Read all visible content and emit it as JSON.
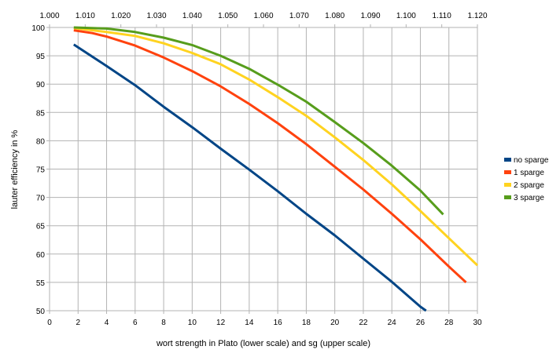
{
  "chart_data": {
    "type": "line",
    "xlabel": "wort strength in Plato (lower scale) and sg (upper scale)",
    "ylabel": "lauter efficiency in %",
    "xlim": [
      0,
      30
    ],
    "ylim": [
      50,
      100
    ],
    "x_ticks": [
      "0",
      "2",
      "4",
      "6",
      "8",
      "10",
      "12",
      "14",
      "16",
      "18",
      "20",
      "22",
      "24",
      "26",
      "28",
      "30"
    ],
    "y_ticks": [
      "50",
      "55",
      "60",
      "65",
      "70",
      "75",
      "80",
      "85",
      "90",
      "95",
      "100"
    ],
    "top_axis": {
      "label_range": [
        1.0,
        1.12
      ],
      "ticks": [
        "1.000",
        "1.010",
        "1.020",
        "1.030",
        "1.040",
        "1.050",
        "1.060",
        "1.070",
        "1.080",
        "1.090",
        "1.100",
        "1.110",
        "1.120"
      ]
    },
    "grid": true,
    "legend_position": "right",
    "series": [
      {
        "name": "no sparge",
        "color": "#004586",
        "points": [
          [
            1.7,
            97.0
          ],
          [
            4,
            93.2
          ],
          [
            6,
            89.8
          ],
          [
            8,
            86.0
          ],
          [
            10,
            82.4
          ],
          [
            12,
            78.6
          ],
          [
            14,
            74.9
          ],
          [
            16,
            71.1
          ],
          [
            18,
            67.1
          ],
          [
            20,
            63.3
          ],
          [
            22,
            59.2
          ],
          [
            24,
            55.1
          ],
          [
            26,
            50.7
          ],
          [
            26.4,
            50.0
          ]
        ]
      },
      {
        "name": "1 sparge",
        "color": "#ff420e",
        "points": [
          [
            1.7,
            99.5
          ],
          [
            3,
            99.0
          ],
          [
            4,
            98.4
          ],
          [
            6,
            96.8
          ],
          [
            8,
            94.7
          ],
          [
            10,
            92.3
          ],
          [
            12,
            89.6
          ],
          [
            14,
            86.5
          ],
          [
            16,
            83.1
          ],
          [
            18,
            79.4
          ],
          [
            20,
            75.4
          ],
          [
            22,
            71.4
          ],
          [
            24,
            67.1
          ],
          [
            26,
            62.6
          ],
          [
            28,
            57.8
          ],
          [
            29.2,
            55.0
          ]
        ]
      },
      {
        "name": "2 sparge",
        "color": "#ffd320",
        "points": [
          [
            1.7,
            99.9
          ],
          [
            4,
            99.2
          ],
          [
            6,
            98.5
          ],
          [
            8,
            97.2
          ],
          [
            10,
            95.5
          ],
          [
            12,
            93.5
          ],
          [
            14,
            90.8
          ],
          [
            16,
            87.7
          ],
          [
            18,
            84.4
          ],
          [
            20,
            80.6
          ],
          [
            22,
            76.6
          ],
          [
            24,
            72.3
          ],
          [
            26,
            67.6
          ],
          [
            28,
            62.8
          ],
          [
            30,
            58.0
          ]
        ]
      },
      {
        "name": "3 sparge",
        "color": "#579d1c",
        "points": [
          [
            1.7,
            100.0
          ],
          [
            4,
            99.8
          ],
          [
            6,
            99.2
          ],
          [
            8,
            98.2
          ],
          [
            10,
            96.9
          ],
          [
            12,
            95.0
          ],
          [
            14,
            92.7
          ],
          [
            16,
            89.9
          ],
          [
            18,
            86.9
          ],
          [
            20,
            83.3
          ],
          [
            22,
            79.6
          ],
          [
            24,
            75.6
          ],
          [
            26,
            71.2
          ],
          [
            27.6,
            67.0
          ]
        ]
      }
    ]
  }
}
